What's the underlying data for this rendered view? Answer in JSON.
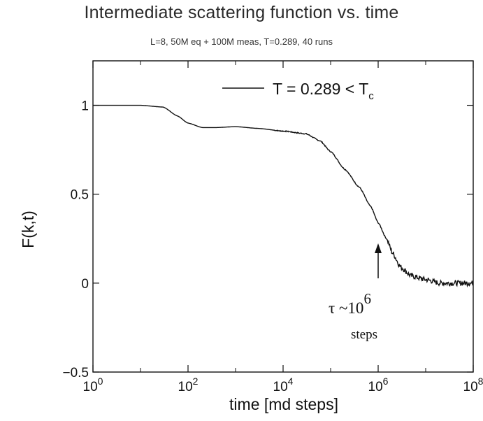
{
  "chart_data": {
    "type": "line",
    "title": "Intermediate scattering function vs. time",
    "subtitle": "L=8, 50M eq + 100M meas, T=0.289, 40 runs",
    "xlabel": "time [md steps]",
    "ylabel": "F(k,t)",
    "xscale": "log",
    "xlim": [
      1,
      100000000
    ],
    "ylim": [
      -0.5,
      1.25
    ],
    "x_tick_labels": [
      {
        "base": "10",
        "exp": "0"
      },
      {
        "base": "10",
        "exp": "2"
      },
      {
        "base": "10",
        "exp": "4"
      },
      {
        "base": "10",
        "exp": "6"
      },
      {
        "base": "10",
        "exp": "8"
      }
    ],
    "y_tick_labels": [
      "-0.5",
      "0",
      "0.5",
      "1"
    ],
    "legend": {
      "position": "top-right",
      "label_main": "T = 0.289 < T",
      "label_sub": "c"
    },
    "series": [
      {
        "name": "T = 0.289 < Tc",
        "x": [
          1,
          10,
          30,
          60,
          100,
          200,
          400,
          1000,
          3000,
          10000,
          30000,
          60000,
          100000,
          200000,
          400000,
          700000,
          1000000,
          1500000,
          2000000,
          3000000,
          5000000,
          10000000,
          20000000,
          50000000,
          100000000
        ],
        "y": [
          1.0,
          1.0,
          0.99,
          0.94,
          0.9,
          0.875,
          0.875,
          0.88,
          0.87,
          0.855,
          0.84,
          0.8,
          0.74,
          0.64,
          0.54,
          0.43,
          0.34,
          0.25,
          0.17,
          0.09,
          0.04,
          0.02,
          0.0,
          0.0,
          0.0
        ]
      }
    ],
    "annotation": {
      "arrow_at_x": 1000000,
      "text_main": "τ ~10",
      "text_exp": "6",
      "text_sub": "steps"
    },
    "colors": {
      "line": "#111111",
      "axes": "#111111",
      "background": "#ffffff"
    }
  }
}
